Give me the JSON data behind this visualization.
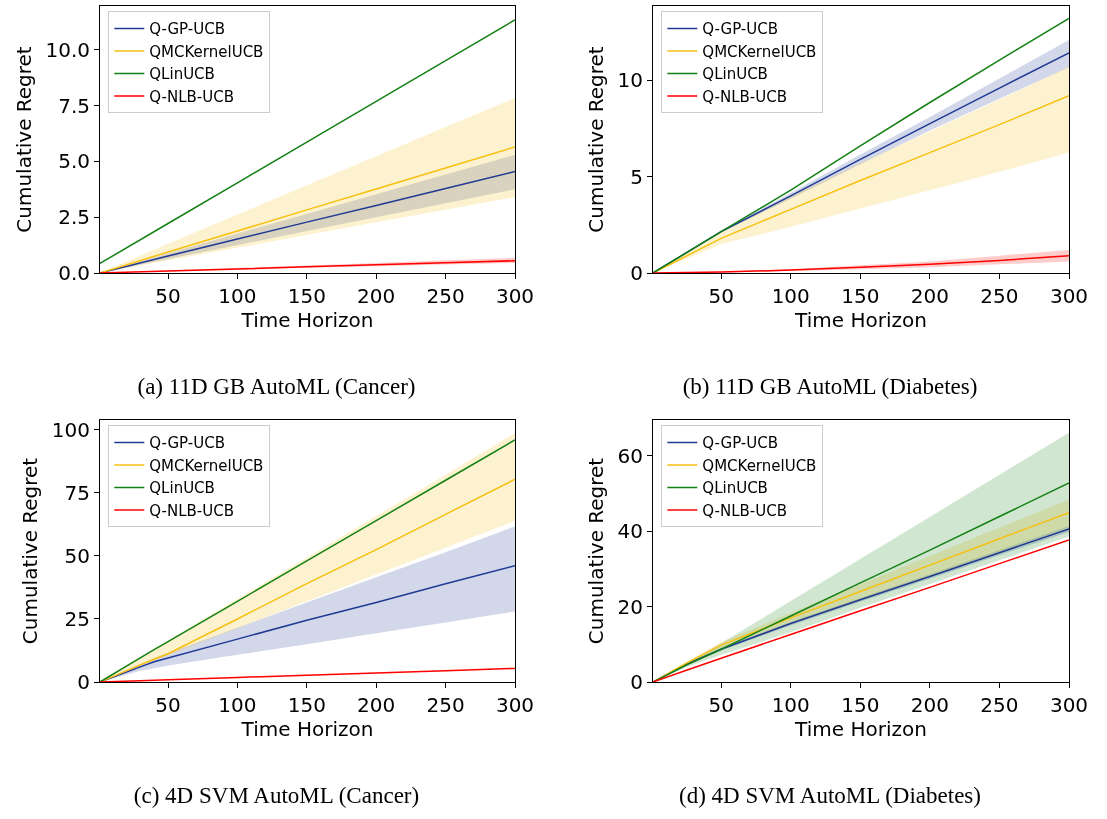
{
  "chart_data": [
    {
      "type": "line",
      "title": "(a) 11D GB AutoML (Cancer)",
      "xlabel": "Time Horizon",
      "ylabel": "Cumulative Regret",
      "x": [
        1,
        50,
        100,
        150,
        200,
        250,
        300
      ],
      "xlim": [
        1,
        300
      ],
      "xticks": [
        50,
        100,
        150,
        200,
        250,
        300
      ],
      "ylim": [
        0,
        11.97
      ],
      "yticks": [
        {
          "value": 0,
          "label": "0.0"
        },
        {
          "value": 2.5,
          "label": "2.5"
        },
        {
          "value": 5,
          "label": "5.0"
        },
        {
          "value": 7.5,
          "label": "7.5"
        },
        {
          "value": 10,
          "label": "10.0"
        }
      ],
      "grid": false,
      "legend": "top left",
      "series": [
        {
          "name": "Q-GP-UCB",
          "color": "#203a94",
          "values": [
            0,
            0.76,
            1.52,
            2.28,
            3.03,
            3.79,
            4.55
          ],
          "lower": [
            0,
            0.63,
            1.25,
            1.88,
            2.5,
            3.13,
            3.75
          ],
          "upper": [
            0,
            0.88,
            1.77,
            2.65,
            3.53,
            4.42,
            5.3
          ]
        },
        {
          "name": "QMCKernelUCB",
          "color": "#f7c010",
          "values": [
            0,
            0.94,
            1.88,
            2.83,
            3.77,
            4.71,
            5.65
          ],
          "lower": [
            0,
            0.57,
            1.13,
            1.7,
            2.27,
            2.83,
            3.4
          ],
          "upper": [
            0,
            1.31,
            2.62,
            3.93,
            5.23,
            6.54,
            7.85
          ]
        },
        {
          "name": "QLinUCB",
          "color": "#138013",
          "values": [
            0.43,
            2.22,
            4.04,
            5.87,
            7.69,
            9.52,
            11.35
          ]
        },
        {
          "name": "Q-NLB-UCB",
          "color": "#ff0000",
          "values": [
            0,
            0.09,
            0.18,
            0.28,
            0.37,
            0.46,
            0.55
          ],
          "lower": [
            0,
            0.08,
            0.15,
            0.23,
            0.3,
            0.38,
            0.45
          ],
          "upper": [
            0,
            0.11,
            0.23,
            0.34,
            0.45,
            0.57,
            0.68
          ]
        }
      ]
    },
    {
      "type": "line",
      "title": "(b) 11D GB AutoML (Diabetes)",
      "xlabel": "Time Horizon",
      "ylabel": "Cumulative Regret",
      "x": [
        1,
        50,
        100,
        150,
        200,
        250,
        300
      ],
      "xlim": [
        1,
        300
      ],
      "xticks": [
        50,
        100,
        150,
        200,
        250,
        300
      ],
      "ylim": [
        0,
        13.86
      ],
      "yticks": [
        0,
        5,
        10
      ],
      "grid": false,
      "legend": "top left",
      "series": [
        {
          "name": "Q-GP-UCB",
          "color": "#203a94",
          "values": [
            0,
            2.15,
            4.0,
            5.9,
            7.75,
            9.6,
            11.43
          ],
          "lower": [
            0,
            2.1,
            3.85,
            5.65,
            7.4,
            9.05,
            10.68
          ],
          "upper": [
            0,
            2.2,
            4.15,
            6.15,
            8.1,
            10.1,
            12.09
          ]
        },
        {
          "name": "QMCKernelUCB",
          "color": "#f7c010",
          "values": [
            0,
            1.8,
            3.3,
            4.8,
            6.25,
            7.7,
            9.2
          ],
          "lower": [
            0,
            1.5,
            2.4,
            3.35,
            4.3,
            5.25,
            6.26
          ],
          "upper": [
            0,
            2.1,
            4.0,
            5.7,
            7.35,
            9.0,
            10.7
          ]
        },
        {
          "name": "QLinUCB",
          "color": "#138013",
          "values": [
            0,
            2.15,
            4.3,
            6.6,
            8.85,
            11.05,
            13.22
          ]
        },
        {
          "name": "Q-NLB-UCB",
          "color": "#ff0000",
          "values": [
            0,
            0.05,
            0.15,
            0.3,
            0.45,
            0.65,
            0.9
          ],
          "lower": [
            0,
            0.03,
            0.1,
            0.2,
            0.3,
            0.45,
            0.6
          ],
          "upper": [
            0,
            0.07,
            0.2,
            0.4,
            0.6,
            0.9,
            1.2
          ]
        }
      ]
    },
    {
      "type": "line",
      "title": "(c) 4D SVM AutoML (Cancer)",
      "xlabel": "Time Horizon",
      "ylabel": "Cumulative Regret",
      "x": [
        1,
        30,
        40,
        50,
        100,
        150,
        200,
        250,
        300
      ],
      "xlim": [
        1,
        300
      ],
      "xticks": [
        50,
        100,
        150,
        200,
        250,
        300
      ],
      "ylim": [
        0,
        103.9
      ],
      "yticks": [
        0,
        25,
        50,
        75,
        100
      ],
      "grid": false,
      "legend": "top left",
      "series": [
        {
          "name": "Q-GP-UCB",
          "color": "#203a94",
          "values": [
            0,
            6,
            8,
            9.5,
            17,
            24.5,
            31.5,
            39,
            46.1
          ],
          "lower": [
            0,
            4.5,
            5.5,
            6.5,
            10.8,
            15,
            19.3,
            23.6,
            28
          ],
          "upper": [
            0,
            7,
            9.5,
            11.5,
            21.5,
            31.5,
            41.5,
            51.5,
            61.7
          ]
        },
        {
          "name": "QMCKernelUCB",
          "color": "#f7c010",
          "values": [
            0,
            6.8,
            9,
            11.2,
            25,
            39,
            52.5,
            66.5,
            80.4
          ],
          "lower": [
            0,
            6.4,
            8.5,
            10.6,
            21.3,
            32,
            42.6,
            53.2,
            63.9
          ],
          "upper": [
            0,
            9.9,
            13.2,
            16.5,
            33,
            49.4,
            65.8,
            82.2,
            98.7
          ]
        },
        {
          "name": "QLinUCB",
          "color": "#138013",
          "values": [
            0,
            9.6,
            12.8,
            16,
            32,
            48,
            64,
            80,
            96
          ]
        },
        {
          "name": "Q-NLB-UCB",
          "color": "#ff0000",
          "values": [
            0,
            0.5,
            0.7,
            0.9,
            1.8,
            2.7,
            3.6,
            4.5,
            5.4
          ]
        }
      ]
    },
    {
      "type": "line",
      "title": "(d) 4D SVM AutoML (Diabetes)",
      "xlabel": "Time Horizon",
      "ylabel": "Cumulative Regret",
      "x": [
        1,
        25,
        50,
        100,
        150,
        200,
        250,
        300
      ],
      "xlim": [
        1,
        300
      ],
      "xticks": [
        50,
        100,
        150,
        200,
        250,
        300
      ],
      "ylim": [
        0,
        69.5
      ],
      "yticks": [
        0,
        20,
        40,
        60
      ],
      "grid": false,
      "legend": "top left",
      "series": [
        {
          "name": "Q-GP-UCB",
          "color": "#203a94",
          "values": [
            0,
            4.7,
            8.7,
            15.5,
            21.8,
            28,
            34.3,
            40.6
          ],
          "lower": [
            0,
            4.5,
            8.4,
            15,
            21.3,
            27.4,
            33.6,
            39.8
          ],
          "upper": [
            0,
            4.9,
            9,
            16,
            22.3,
            28.6,
            35,
            41.4
          ]
        },
        {
          "name": "QMCKernelUCB",
          "color": "#f7c010",
          "values": [
            0,
            5,
            9.8,
            17,
            24,
            31,
            38,
            44.9
          ],
          "lower": [
            0,
            4.6,
            9,
            15.5,
            21.5,
            28,
            34.5,
            41
          ],
          "upper": [
            0,
            5.4,
            10.6,
            18.3,
            25.9,
            33.4,
            40.9,
            48.4
          ]
        },
        {
          "name": "QLinUCB",
          "color": "#138013",
          "values": [
            0,
            4.5,
            8.7,
            17.5,
            26.3,
            35,
            43.9,
            52.8
          ],
          "lower": [
            0,
            4,
            7.2,
            13.2,
            19.7,
            26,
            32.3,
            38.6
          ],
          "upper": [
            0,
            5,
            10.3,
            21.5,
            32.6,
            43.8,
            55,
            66.1
          ]
        },
        {
          "name": "Q-NLB-UCB",
          "color": "#ff0000",
          "values": [
            0,
            3.1,
            6.3,
            12.6,
            18.9,
            25.1,
            31.4,
            37.7
          ]
        }
      ]
    }
  ]
}
